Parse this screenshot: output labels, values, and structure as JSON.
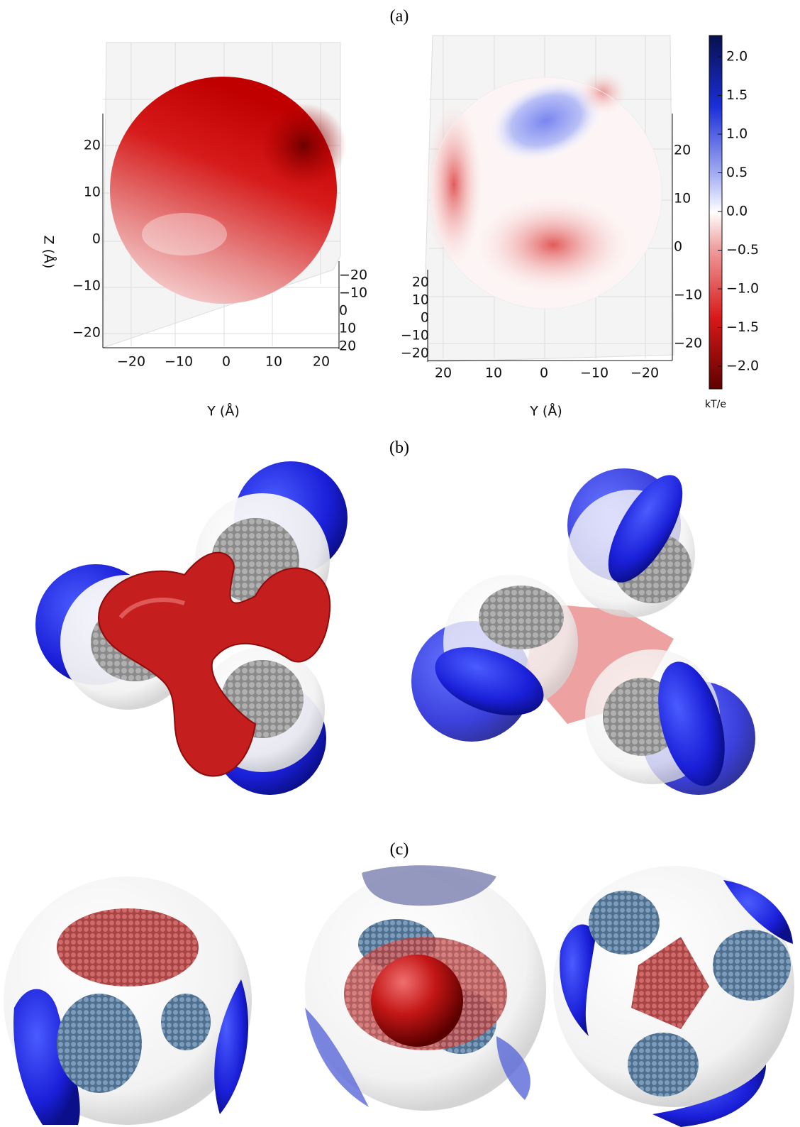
{
  "panels": {
    "a": "(a)",
    "b": "(b)",
    "c": "(c)"
  },
  "plot_left": {
    "z_label": "Z (Å)",
    "y_label": "Y (Å)",
    "z_ticks": [
      "20",
      "10",
      "0",
      "−10",
      "−20"
    ],
    "y_ticks": [
      "−20",
      "−10",
      "0",
      "10",
      "20"
    ],
    "x_ticks": [
      "−20",
      "−10",
      "0",
      "10",
      "20"
    ]
  },
  "plot_right": {
    "y_label": "Y (Å)",
    "z_ticks": [
      "20",
      "10",
      "0",
      "−10",
      "−20"
    ],
    "y_ticks": [
      "20",
      "10",
      "0",
      "−10",
      "−20"
    ],
    "x_ticks": [
      "20",
      "10",
      "0",
      "−10",
      "−20"
    ]
  },
  "colorbar": {
    "ticks": [
      "2.0",
      "1.5",
      "1.0",
      "0.5",
      "0.0",
      "−0.5",
      "−1.0",
      "−1.5",
      "−2.0"
    ],
    "unit": "kT/e"
  }
}
